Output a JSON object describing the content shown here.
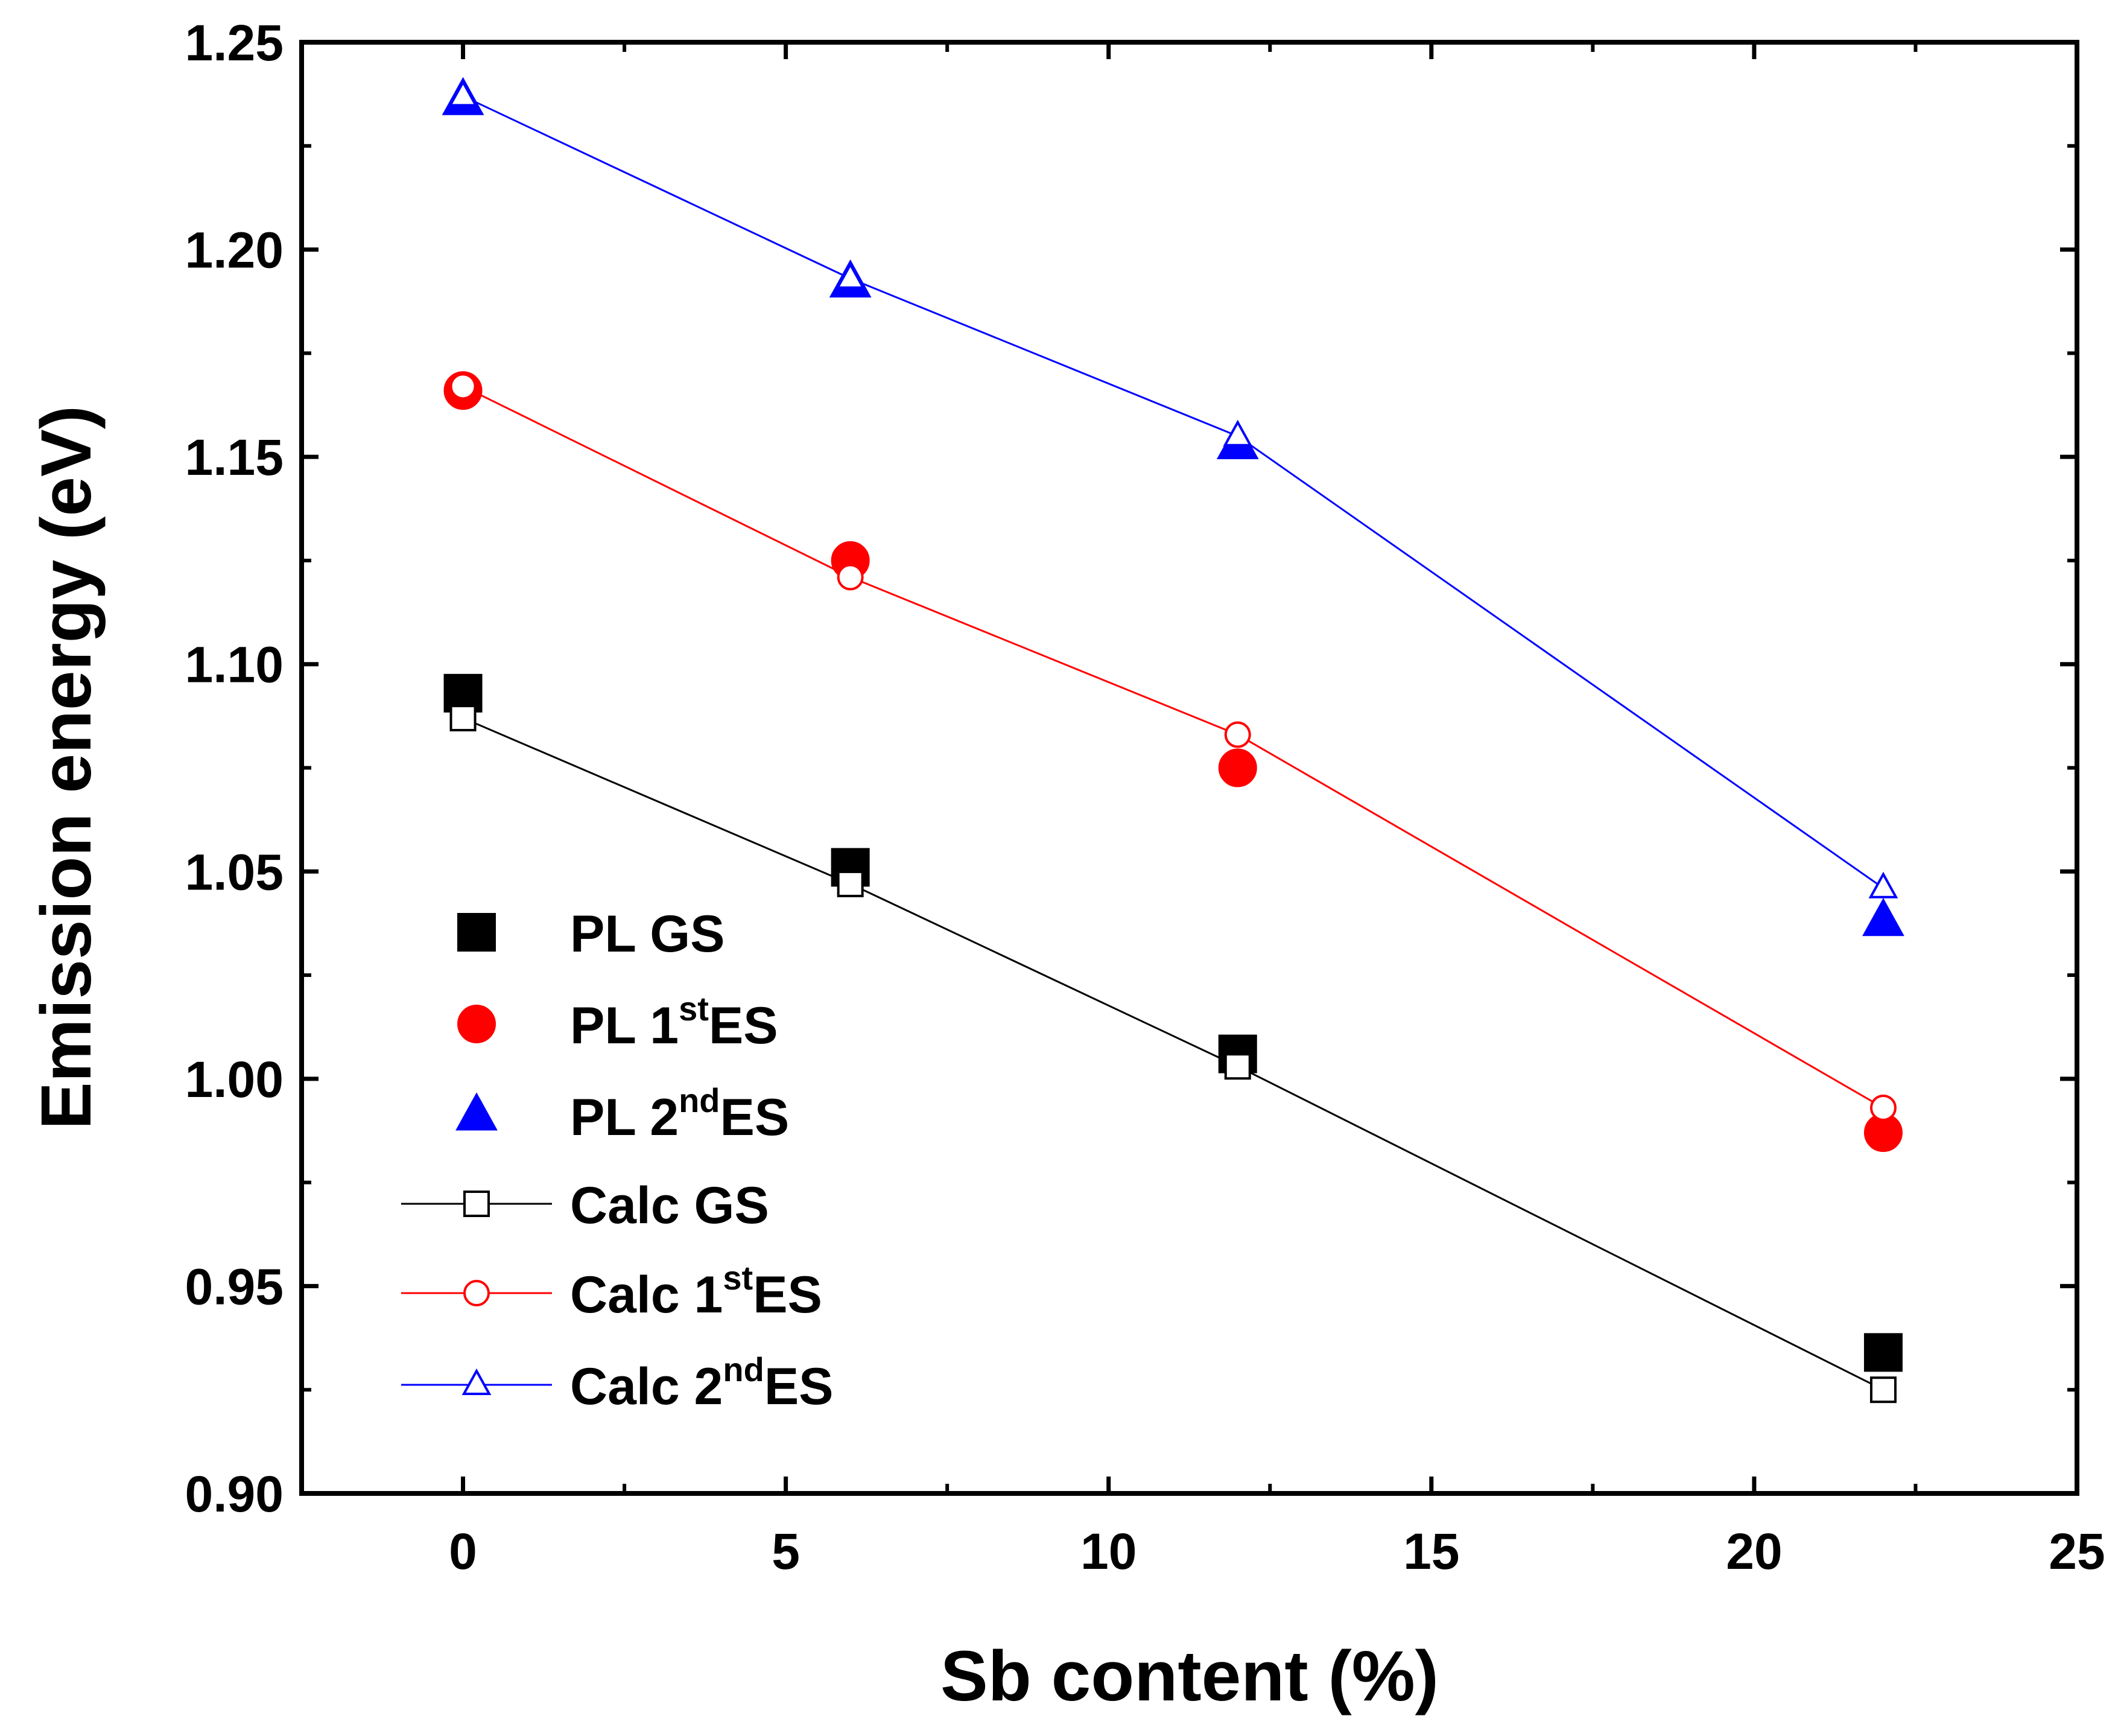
{
  "chart_data": {
    "type": "scatter",
    "title": "",
    "xlabel": "Sb content (%)",
    "ylabel": "Emission energy (eV)",
    "xlim": [
      -2.5,
      25
    ],
    "ylim": [
      0.9,
      1.25
    ],
    "xticks": [
      0,
      5,
      10,
      15,
      20,
      25
    ],
    "yticks": [
      0.9,
      0.95,
      1.0,
      1.05,
      1.1,
      1.15,
      1.2,
      1.25
    ],
    "xtick_labels": [
      "0",
      "5",
      "10",
      "15",
      "20",
      "25"
    ],
    "ytick_labels": [
      "0.90",
      "0.95",
      "1.00",
      "1.05",
      "1.10",
      "1.15",
      "1.20",
      "1.25"
    ],
    "legend_position": "bottom-left",
    "series": [
      {
        "name": "PL GS",
        "label": "PL GS",
        "label_sup": "",
        "label_post": "",
        "kind": "marker",
        "marker": "square",
        "filled": true,
        "color": "#000000",
        "x": [
          0,
          6,
          12,
          22
        ],
        "y": [
          1.093,
          1.051,
          1.006,
          0.934
        ]
      },
      {
        "name": "PL 1stES",
        "label": "PL 1",
        "label_sup": "st",
        "label_post": "ES",
        "kind": "marker",
        "marker": "circle",
        "filled": true,
        "color": "#ff0000",
        "x": [
          0,
          6,
          12,
          22
        ],
        "y": [
          1.166,
          1.125,
          1.075,
          0.987
        ]
      },
      {
        "name": "PL 2ndES",
        "label": "PL 2",
        "label_sup": "nd",
        "label_post": "ES",
        "kind": "marker",
        "marker": "triangle",
        "filled": true,
        "color": "#0000ff",
        "x": [
          0,
          6,
          12,
          22
        ],
        "y": [
          1.236,
          1.192,
          1.153,
          1.038
        ]
      },
      {
        "name": "Calc GS",
        "label": "Calc GS",
        "label_sup": "",
        "label_post": "",
        "kind": "line",
        "marker": "square",
        "filled": false,
        "color": "#000000",
        "x": [
          0,
          6,
          12,
          22
        ],
        "y": [
          1.087,
          1.047,
          1.003,
          0.925
        ]
      },
      {
        "name": "Calc 1stES",
        "label": "Calc 1",
        "label_sup": "st",
        "label_post": "ES",
        "kind": "line",
        "marker": "circle",
        "filled": false,
        "color": "#ff0000",
        "x": [
          0,
          6,
          12,
          22
        ],
        "y": [
          1.167,
          1.121,
          1.083,
          0.993
        ]
      },
      {
        "name": "Calc 2ndES",
        "label": "Calc 2",
        "label_sup": "nd",
        "label_post": "ES",
        "kind": "line",
        "marker": "triangle",
        "filled": false,
        "color": "#0000ff",
        "x": [
          0,
          6,
          12,
          22
        ],
        "y": [
          1.237,
          1.193,
          1.155,
          1.046
        ]
      }
    ]
  }
}
